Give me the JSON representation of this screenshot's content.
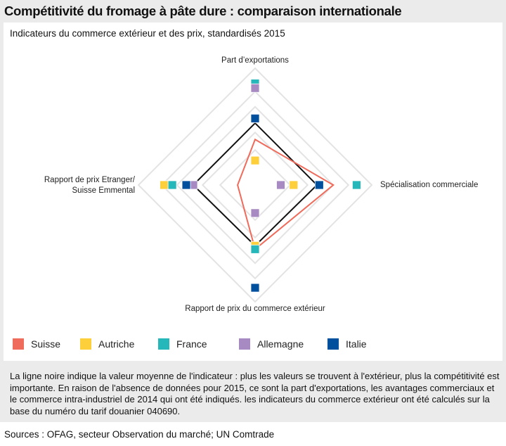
{
  "title": "Compétitivité du fromage à pâte dure : comparaison internationale",
  "note": "La ligne noire indique la valeur moyenne de l'indicateur : plus les valeurs se trouvent à l'extérieur, plus la compétitivité est importante. En raison de l'absence de données pour 2015, ce sont la part d'exportations, les avantages commerciaux et le commerce intra-industriel de 2014 qui ont été indiqués. les indicateurs du commerce extérieur ont été calculés sur la base du numéro du tarif douanier 040690.",
  "sources": "Sources : OFAG, secteur Observation du marché; UN Comtrade",
  "chart_data": {
    "type": "radar",
    "title": "Indicateurs du commerce extérieur et des prix, standardisés 2015",
    "axes": [
      "Part d’exportations",
      "Spécialisation commerciale",
      "Rapport de prix du commerce extérieur",
      "Rapport de prix Etranger/ Suisse Emmental"
    ],
    "axis_label_lines": [
      [
        "Part d’exportations"
      ],
      [
        "Spécialisation commerciale"
      ],
      [
        "Rapport de prix du commerce extérieur"
      ],
      [
        "Rapport de prix Etranger/",
        "Suisse Emmental"
      ]
    ],
    "range": [
      0,
      1
    ],
    "grid_levels": [
      0.3,
      0.45,
      0.67,
      0.8,
      1.0
    ],
    "mean_line": {
      "name": "Moyenne",
      "color": "#111111",
      "values": [
        0.53,
        0.53,
        0.52,
        0.53
      ]
    },
    "series": [
      {
        "name": "Suisse",
        "color": "#ef6b5b",
        "style": "line",
        "values": [
          0.39,
          0.67,
          0.55,
          0.15
        ]
      },
      {
        "name": "Autriche",
        "color": "#fdcf3a",
        "style": "marker",
        "values": [
          0.21,
          0.33,
          0.52,
          0.78
        ]
      },
      {
        "name": "France",
        "color": "#25b7b9",
        "style": "marker",
        "values": [
          0.87,
          0.87,
          0.55,
          0.71
        ]
      },
      {
        "name": "Allemagne",
        "color": "#a78ac2",
        "style": "marker",
        "values": [
          0.83,
          0.22,
          0.24,
          0.53
        ]
      },
      {
        "name": "Italie",
        "color": "#00509e",
        "style": "marker",
        "values": [
          0.57,
          0.55,
          0.88,
          0.59
        ]
      }
    ],
    "legend_position": "bottom"
  }
}
